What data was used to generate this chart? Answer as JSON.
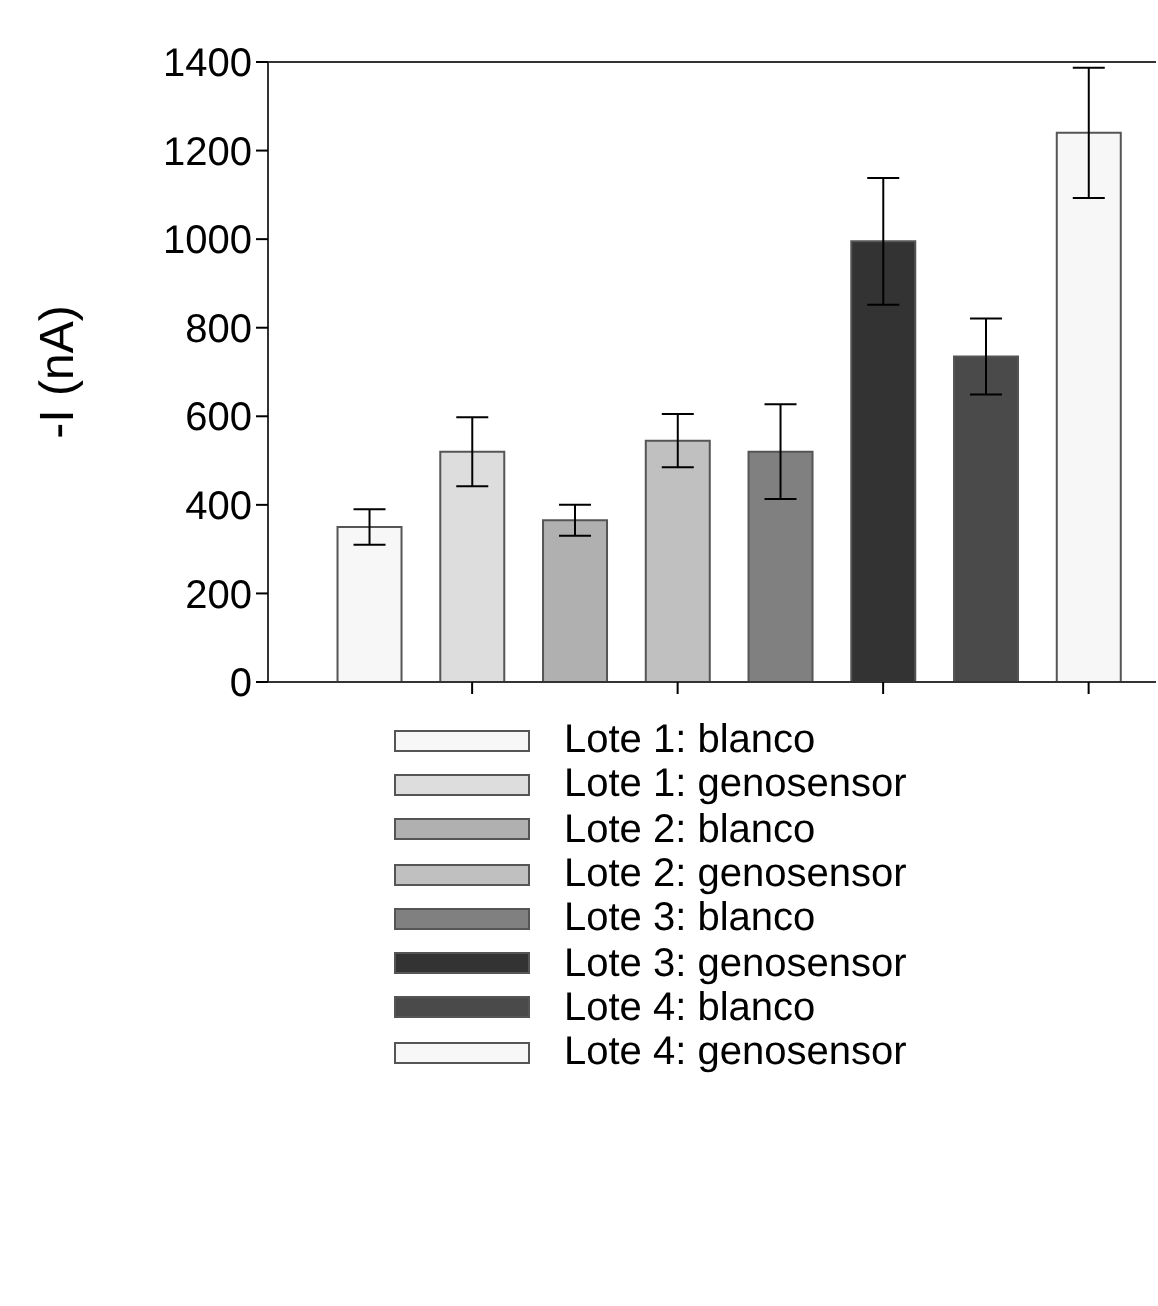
{
  "chart_data": {
    "type": "bar",
    "ylabel": "-I (nA)",
    "categories": [
      null,
      null,
      null,
      null,
      null,
      null,
      null,
      null
    ],
    "ylim": [
      0,
      1400
    ],
    "yticks": [
      0,
      200,
      400,
      600,
      800,
      1000,
      1200,
      1400
    ],
    "grid": false,
    "legend": "bottom",
    "series": [
      {
        "name": "Lote 1: blanco",
        "color": "#f7f7f7",
        "values": [
          350,
          null,
          null,
          null,
          null,
          null,
          null,
          null
        ],
        "errors": [
          40,
          null,
          null,
          null,
          null,
          null,
          null,
          null
        ]
      },
      {
        "name": "Lote 1: genosensor",
        "color": "#dddddd",
        "values": [
          null,
          520,
          null,
          null,
          null,
          null,
          null,
          null
        ],
        "errors": [
          null,
          78,
          null,
          null,
          null,
          null,
          null,
          null
        ]
      },
      {
        "name": "Lote 2: blanco",
        "color": "#b0b0b0",
        "values": [
          null,
          null,
          365,
          null,
          null,
          null,
          null,
          null
        ],
        "errors": [
          null,
          null,
          35,
          null,
          null,
          null,
          null,
          null
        ]
      },
      {
        "name": "Lote 2: genosensor",
        "color": "#c0c0c0",
        "values": [
          null,
          null,
          null,
          545,
          null,
          null,
          null,
          null
        ],
        "errors": [
          null,
          null,
          null,
          60,
          null,
          null,
          null,
          null
        ]
      },
      {
        "name": "Lote 3: blanco",
        "color": "#808080",
        "values": [
          null,
          null,
          null,
          null,
          520,
          null,
          null,
          null
        ],
        "errors": [
          null,
          null,
          null,
          null,
          107,
          null,
          null,
          null
        ]
      },
      {
        "name": "Lote 3: genosensor",
        "color": "#333333",
        "values": [
          null,
          null,
          null,
          null,
          null,
          995,
          null,
          null
        ],
        "errors": [
          null,
          null,
          null,
          null,
          null,
          143,
          null,
          null
        ]
      },
      {
        "name": "Lote 4: blanco",
        "color": "#4a4a4a",
        "values": [
          null,
          null,
          null,
          null,
          null,
          null,
          735,
          null
        ],
        "errors": [
          null,
          null,
          null,
          null,
          null,
          null,
          86,
          null
        ]
      },
      {
        "name": "Lote 4: genosensor",
        "color": "#f7f7f7",
        "values": [
          null,
          null,
          null,
          null,
          null,
          null,
          null,
          1240
        ],
        "errors": [
          null,
          null,
          null,
          null,
          null,
          null,
          null,
          147
        ]
      }
    ]
  }
}
